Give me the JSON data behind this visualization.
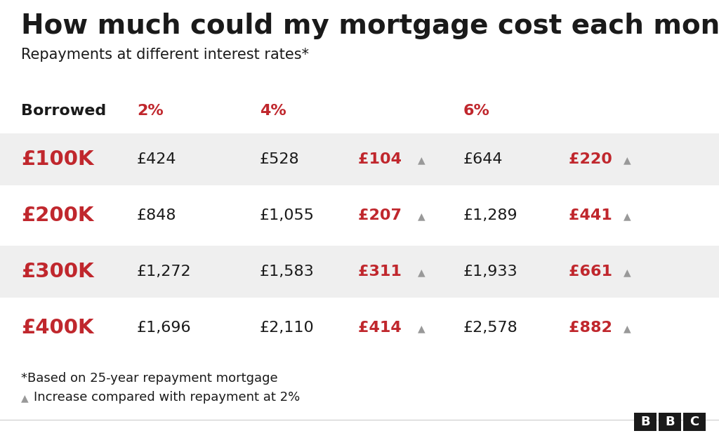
{
  "title": "How much could my mortgage cost each month?",
  "subtitle": "Repayments at different interest rates*",
  "background_color": "#ffffff",
  "row_bg_color": "#efefef",
  "row_white_color": "#ffffff",
  "red_color": "#c0272d",
  "dark_color": "#1a1a1a",
  "gray_color": "#999999",
  "header_row": [
    "Borrowed",
    "2%",
    "4%",
    "6%"
  ],
  "rows": [
    {
      "borrowed": "£100K",
      "val_2pct": "£424",
      "val_4pct": "£528",
      "diff_4pct": "£104",
      "val_6pct": "£644",
      "diff_6pct": "£220"
    },
    {
      "borrowed": "£200K",
      "val_2pct": "£848",
      "val_4pct": "£1,055",
      "diff_4pct": "£207",
      "val_6pct": "£1,289",
      "diff_6pct": "£441"
    },
    {
      "borrowed": "£300K",
      "val_2pct": "£1,272",
      "val_4pct": "£1,583",
      "diff_4pct": "£311",
      "val_6pct": "£1,933",
      "diff_6pct": "£661"
    },
    {
      "borrowed": "£400K",
      "val_2pct": "£1,696",
      "val_4pct": "£2,110",
      "diff_4pct": "£414",
      "val_6pct": "£2,578",
      "diff_6pct": "£882"
    }
  ],
  "footnote1": "*Based on 25-year repayment mortgage",
  "footnote2": "Increase compared with repayment at 2%",
  "title_fontsize": 28,
  "subtitle_fontsize": 15,
  "header_fontsize": 16,
  "cell_fontsize": 16,
  "borrowed_fontsize": 21,
  "diff_fontsize": 16,
  "footnote_fontsize": 13,
  "arrow_char": "▲"
}
